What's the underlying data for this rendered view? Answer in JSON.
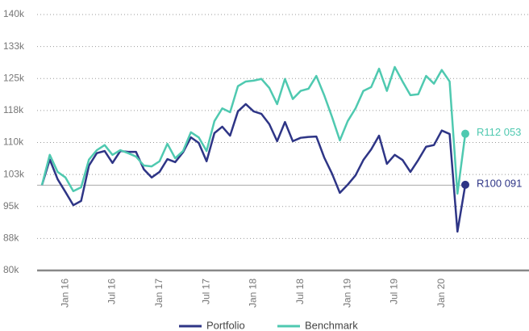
{
  "chart_data": {
    "type": "line",
    "categories": [
      null,
      null,
      null,
      "Jan 16",
      null,
      null,
      null,
      null,
      null,
      "Jul 16",
      null,
      null,
      null,
      null,
      null,
      "Jan 17",
      null,
      null,
      null,
      null,
      null,
      "Jul 17",
      null,
      null,
      null,
      null,
      null,
      "Jan 18",
      null,
      null,
      null,
      null,
      null,
      "Jul 18",
      null,
      null,
      null,
      null,
      null,
      "Jan 19",
      null,
      null,
      null,
      null,
      null,
      "Jul 19",
      null,
      null,
      null,
      null,
      null,
      "Jan 20",
      null,
      null,
      null
    ],
    "series": [
      {
        "name": "Portfolio",
        "color": "#2e3586",
        "values": [
          100000,
          106000,
          101400,
          98400,
          95300,
          96300,
          104600,
          107500,
          108000,
          105200,
          108000,
          107800,
          107800,
          103700,
          101800,
          103100,
          106100,
          105400,
          107700,
          111200,
          109900,
          105600,
          112200,
          113700,
          111600,
          117300,
          119000,
          117300,
          116700,
          114300,
          110300,
          114800,
          110300,
          111100,
          111300,
          111400,
          106500,
          102700,
          98200,
          100100,
          102300,
          105900,
          108400,
          111600,
          105000,
          107100,
          105900,
          103100,
          105900,
          109000,
          109400,
          112800,
          112000,
          89100,
          100091
        ],
        "value_labels": [
          null,
          null,
          null,
          null,
          null,
          null,
          null,
          null,
          null,
          null,
          null,
          null,
          null,
          null,
          null,
          null,
          null,
          null,
          null,
          null,
          null,
          null,
          null,
          null,
          null,
          null,
          null,
          null,
          null,
          null,
          null,
          null,
          null,
          null,
          null,
          null,
          null,
          null,
          null,
          null,
          null,
          null,
          null,
          null,
          null,
          null,
          null,
          null,
          null,
          null,
          null,
          null,
          null,
          null,
          "R100 091"
        ]
      },
      {
        "name": "Benchmark",
        "color": "#4fc9b0",
        "values": [
          100000,
          107100,
          103100,
          101800,
          98600,
          99500,
          106000,
          108200,
          109400,
          107100,
          108200,
          107500,
          106700,
          104600,
          104400,
          105600,
          109700,
          106300,
          108000,
          112400,
          111200,
          108000,
          115000,
          118000,
          117100,
          123200,
          124300,
          124500,
          124900,
          122800,
          119000,
          124900,
          120200,
          122100,
          122600,
          125600,
          121100,
          116000,
          110500,
          115000,
          118000,
          122100,
          123000,
          127300,
          122100,
          127700,
          124300,
          121100,
          121300,
          125600,
          123800,
          127000,
          124300,
          98000,
          112053
        ],
        "value_labels": [
          null,
          null,
          null,
          null,
          null,
          null,
          null,
          null,
          null,
          null,
          null,
          null,
          null,
          null,
          null,
          null,
          null,
          null,
          null,
          null,
          null,
          null,
          null,
          null,
          null,
          null,
          null,
          null,
          null,
          null,
          null,
          null,
          null,
          null,
          null,
          null,
          null,
          null,
          null,
          null,
          null,
          null,
          null,
          null,
          null,
          null,
          null,
          null,
          null,
          null,
          null,
          null,
          null,
          null,
          "R112 053"
        ]
      }
    ],
    "ylim": [
      80000,
      140000
    ],
    "yticks": [
      {
        "value": 80000,
        "label": "80k"
      },
      {
        "value": 87500,
        "label": "88k"
      },
      {
        "value": 95000,
        "label": "95k"
      },
      {
        "value": 102500,
        "label": "103k"
      },
      {
        "value": 110000,
        "label": "110k"
      },
      {
        "value": 117500,
        "label": "118k"
      },
      {
        "value": 125000,
        "label": "125k"
      },
      {
        "value": 132500,
        "label": "133k"
      },
      {
        "value": 140000,
        "label": "140k"
      }
    ],
    "baseline": 100000,
    "grid": true,
    "legend": "bottom"
  }
}
